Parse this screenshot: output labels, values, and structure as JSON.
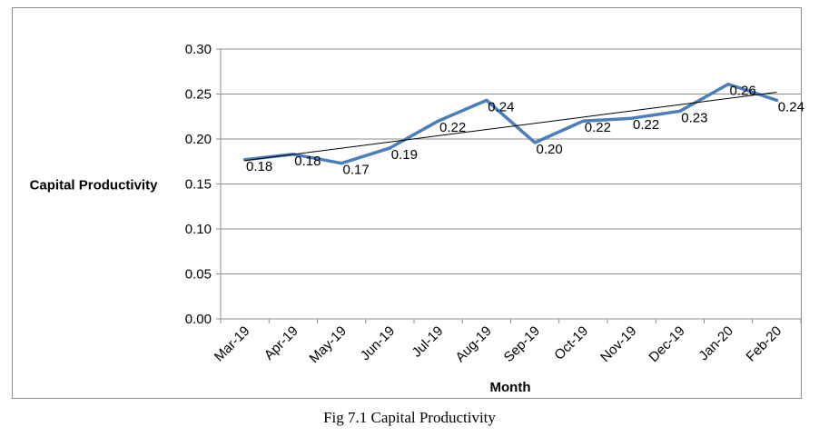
{
  "caption": "Fig 7.1 Capital Productivity",
  "chart_data": {
    "type": "line",
    "title": "",
    "xlabel": "Month",
    "ylabel": "Capital Productivity",
    "ylim": [
      0,
      0.3
    ],
    "yticks": [
      "0.00",
      "0.05",
      "0.10",
      "0.15",
      "0.20",
      "0.25",
      "0.30"
    ],
    "grid": true,
    "legend": "none",
    "categories": [
      "Mar-19",
      "Apr-19",
      "May-19",
      "Jun-19",
      "Jul-19",
      "Aug-19",
      "Sep-19",
      "Oct-19",
      "Nov-19",
      "Dec-19",
      "Jan-20",
      "Feb-20"
    ],
    "series": [
      {
        "values": [
          0.177,
          0.183,
          0.173,
          0.19,
          0.22,
          0.243,
          0.196,
          0.22,
          0.223,
          0.231,
          0.261,
          0.243
        ],
        "data_labels": [
          "0.18",
          "0.18",
          "0.17",
          "0.19",
          "0.22",
          "0.24",
          "0.20",
          "0.22",
          "0.22",
          "0.23",
          "0.26",
          "0.24"
        ],
        "color": "#4a7ebb"
      }
    ],
    "trendline": {
      "type": "linear",
      "start": 0.176,
      "end": 0.252,
      "color": "#000000"
    }
  }
}
